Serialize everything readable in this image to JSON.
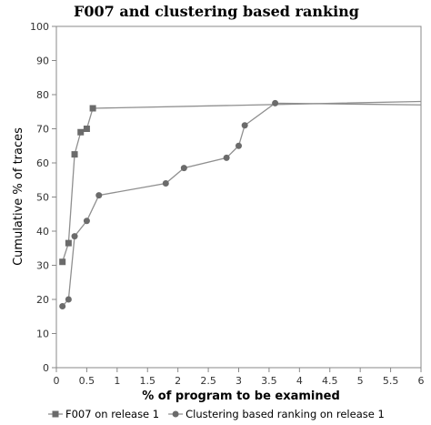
{
  "chart_data": {
    "type": "line",
    "title": "F007 and clustering based ranking",
    "xlabel": "% of program to be examined",
    "ylabel": "Cumulative % of traces",
    "xlim": [
      0,
      6
    ],
    "ylim": [
      0,
      100
    ],
    "x_ticks": [
      "0",
      "0.5",
      "1",
      "1.5",
      "2",
      "2.5",
      "3",
      "3.5",
      "4",
      "4.5",
      "5",
      "5.5",
      "6"
    ],
    "y_ticks": [
      "0",
      "10",
      "20",
      "30",
      "40",
      "50",
      "60",
      "70",
      "80",
      "90",
      "100"
    ],
    "grid": false,
    "legend_position": "bottom",
    "series": [
      {
        "name": "F007 on release 1",
        "marker": "square",
        "color": "#6b6b6b",
        "x": [
          0.1,
          0.2,
          0.3,
          0.4,
          0.5,
          0.6,
          6.0
        ],
        "y": [
          31,
          36.5,
          62.5,
          69,
          70,
          76,
          78
        ]
      },
      {
        "name": "Clustering based ranking on release 1",
        "marker": "circle",
        "color": "#6b6b6b",
        "x": [
          0.1,
          0.2,
          0.3,
          0.5,
          0.7,
          1.8,
          2.1,
          2.8,
          3.0,
          3.1,
          3.6,
          6.0
        ],
        "y": [
          18,
          20,
          38.5,
          43,
          50.5,
          54,
          58.5,
          61.5,
          65,
          71,
          77.5,
          77
        ]
      }
    ]
  }
}
